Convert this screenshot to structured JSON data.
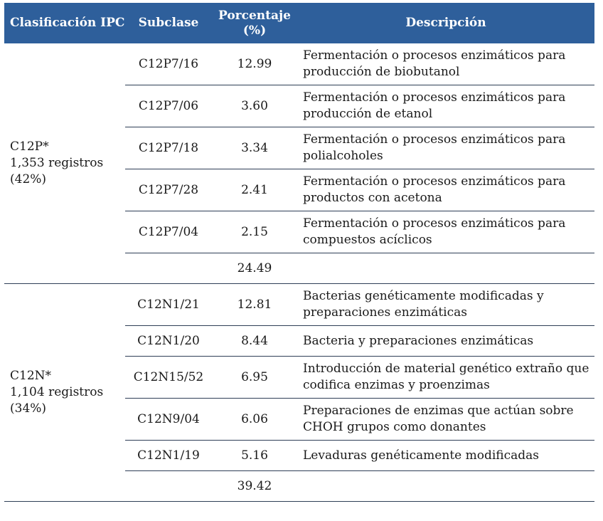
{
  "header": {
    "col1": "Clasificación IPC",
    "col2": "Subclase",
    "col3_line1": "Porcentaje",
    "col3_line2": "(%)",
    "col4": "Descripción"
  },
  "groups": [
    {
      "code": "C12P*",
      "records": "1,353 registros",
      "share": "(42%)",
      "rows": [
        {
          "subclass": "C12P7/16",
          "percent": "12.99",
          "desc1": "Fermentación o procesos enzimáticos para",
          "desc2": "producción de biobutanol"
        },
        {
          "subclass": "C12P7/06",
          "percent": "3.60",
          "desc1": "Fermentación o procesos enzimáticos para",
          "desc2": "producción de etanol"
        },
        {
          "subclass": "C12P7/18",
          "percent": "3.34",
          "desc1": "Fermentación o procesos enzimáticos para",
          "desc2": "polialcoholes"
        },
        {
          "subclass": "C12P7/28",
          "percent": "2.41",
          "desc1": "Fermentación o procesos enzimáticos para",
          "desc2": "productos con acetona"
        },
        {
          "subclass": "C12P7/04",
          "percent": "2.15",
          "desc1": "Fermentación o procesos enzimáticos para",
          "desc2": "compuestos acíclicos"
        }
      ],
      "total": "24.49"
    },
    {
      "code": "C12N*",
      "records": "1,104 registros",
      "share": "(34%)",
      "rows": [
        {
          "subclass": "C12N1/21",
          "percent": "12.81",
          "desc1": "Bacterias genéticamente modificadas y",
          "desc2": "preparaciones enzimáticas"
        },
        {
          "subclass": "C12N1/20",
          "percent": "8.44",
          "desc1": "Bacteria y preparaciones enzimáticas",
          "desc2": ""
        },
        {
          "subclass": "C12N15/52",
          "percent": "6.95",
          "desc1": "Introducción de material genético extraño que",
          "desc2": "codifica enzimas y proenzimas"
        },
        {
          "subclass": "C12N9/04",
          "percent": "6.06",
          "desc1": "Preparaciones de enzimas que actúan sobre",
          "desc2": "CHOH grupos como donantes"
        },
        {
          "subclass": "C12N1/19",
          "percent": "5.16",
          "desc1": "Levaduras genéticamente modificadas",
          "desc2": ""
        }
      ],
      "total": "39.42"
    }
  ]
}
